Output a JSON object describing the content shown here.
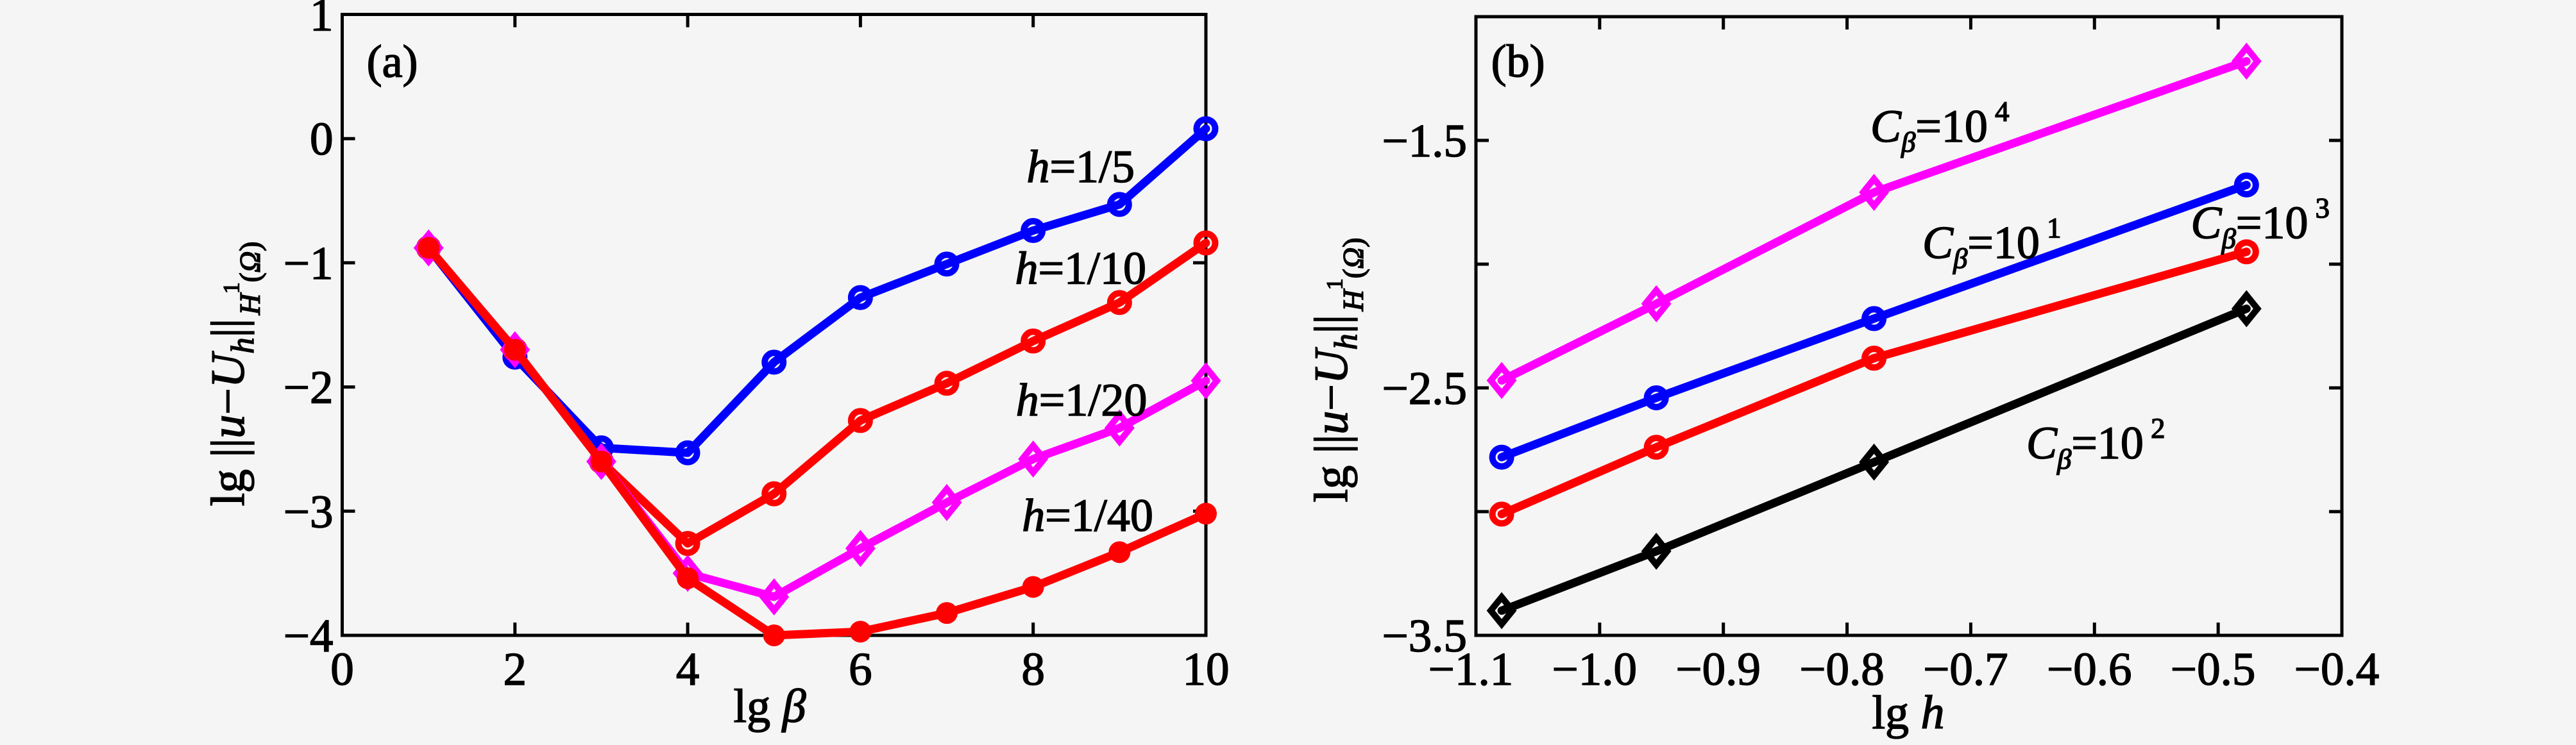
{
  "figure": {
    "background": "#F5F5F5",
    "frame_color": "#000000",
    "text_color": "#000000"
  },
  "chart_data": [
    {
      "type": "line",
      "panel_label": "(a)",
      "xlabel": "lg β",
      "xlabel_segments": [
        {
          "t": "lg "
        },
        {
          "t": "β",
          "i": 1
        }
      ],
      "ylabel": "lg ||u−U_h||_H1(Ω)",
      "ylabel_segments": [
        {
          "t": "lg "
        },
        {
          "t": "||"
        },
        {
          "t": "u",
          "i": 1
        },
        {
          "t": "−"
        },
        {
          "t": "U",
          "i": 1
        },
        {
          "t": "h",
          "i": 1,
          "sz": 0.68,
          "dy": 0.2
        },
        {
          "t": "||"
        },
        {
          "t": " ",
          "sz": 0.3
        },
        {
          "t": "H",
          "i": 1,
          "sz": 0.62,
          "dy": 0.34
        },
        {
          "t": "1",
          "sz": 0.48,
          "dy": -0.1
        },
        {
          "t": "(",
          "sz": 0.62,
          "dy": 0.34
        },
        {
          "t": "Ω",
          "i": 1,
          "sz": 0.62,
          "dy": 0.34
        },
        {
          "t": ")",
          "sz": 0.62,
          "dy": 0.34
        }
      ],
      "xlim": [
        0,
        10
      ],
      "ylim": [
        -4,
        1
      ],
      "xticks": [
        {
          "v": 0,
          "label": "0"
        },
        {
          "v": 2,
          "label": "2"
        },
        {
          "v": 4,
          "label": "4"
        },
        {
          "v": 6,
          "label": "6"
        },
        {
          "v": 8,
          "label": "8"
        },
        {
          "v": 10,
          "label": "10"
        }
      ],
      "yticks": [
        {
          "v": 1,
          "label": "1"
        },
        {
          "v": 0,
          "label": "0"
        },
        {
          "v": -1,
          "label": "−1"
        },
        {
          "v": -2,
          "label": "−2"
        },
        {
          "v": -3,
          "label": "−3"
        },
        {
          "v": -4,
          "label": "−4"
        }
      ],
      "series": [
        {
          "name": "h=1/5",
          "color": "#0000FF",
          "marker": "circle",
          "filled": false,
          "x": [
            1,
            2,
            3,
            4,
            5,
            6,
            7,
            8,
            9,
            10
          ],
          "y": [
            -0.88,
            -1.76,
            -2.49,
            -2.53,
            -1.8,
            -1.28,
            -1.01,
            -0.74,
            -0.53,
            0.08
          ],
          "label_segments": [
            {
              "t": "h",
              "i": 1
            },
            {
              "t": "=1/5"
            }
          ],
          "label_pos": {
            "x": 8.55,
            "y": -0.22
          }
        },
        {
          "name": "h=1/10",
          "color": "#FF0000",
          "marker": "circle",
          "filled": false,
          "x": [
            1,
            2,
            3,
            4,
            5,
            6,
            7,
            8,
            9,
            10
          ],
          "y": [
            -0.88,
            -1.7,
            -2.6,
            -3.26,
            -2.86,
            -2.27,
            -1.97,
            -1.63,
            -1.32,
            -0.84
          ],
          "label_segments": [
            {
              "t": "h",
              "i": 1
            },
            {
              "t": "=1/10"
            }
          ],
          "label_pos": {
            "x": 8.55,
            "y": -1.04
          }
        },
        {
          "name": "h=1/20",
          "color": "#FF00FF",
          "marker": "diamond",
          "filled": false,
          "x": [
            1,
            2,
            3,
            4,
            5,
            6,
            7,
            8,
            9,
            10
          ],
          "y": [
            -0.88,
            -1.7,
            -2.6,
            -3.5,
            -3.69,
            -3.3,
            -2.93,
            -2.58,
            -2.33,
            -1.95
          ],
          "label_segments": [
            {
              "t": "h",
              "i": 1
            },
            {
              "t": "=1/20"
            }
          ],
          "label_pos": {
            "x": 8.56,
            "y": -2.1
          }
        },
        {
          "name": "h=1/40",
          "color": "#FF0000",
          "marker": "circle",
          "filled": true,
          "x": [
            1,
            2,
            3,
            4,
            5,
            6,
            7,
            8,
            9,
            10
          ],
          "y": [
            -0.88,
            -1.7,
            -2.6,
            -3.54,
            -4.0,
            -3.97,
            -3.82,
            -3.61,
            -3.33,
            -3.02
          ],
          "label_segments": [
            {
              "t": "h",
              "i": 1
            },
            {
              "t": "=1/40"
            }
          ],
          "label_pos": {
            "x": 8.63,
            "y": -3.03
          }
        }
      ],
      "annotations": [
        {
          "name": "panel-label-a",
          "segments": [
            {
              "t": "(a)"
            }
          ],
          "x": 0.58,
          "y": 0.6,
          "size": 72
        }
      ]
    },
    {
      "type": "line",
      "panel_label": "(b)",
      "xlabel": "lg h",
      "xlabel_segments": [
        {
          "t": "lg "
        },
        {
          "t": "h",
          "i": 1
        }
      ],
      "ylabel": "lg ||u−U_h||_H1(Ω)",
      "ylabel_segments": [
        {
          "t": "lg "
        },
        {
          "t": "||"
        },
        {
          "t": "u",
          "i": 1
        },
        {
          "t": "−"
        },
        {
          "t": "U",
          "i": 1
        },
        {
          "t": "h",
          "i": 1,
          "sz": 0.68,
          "dy": 0.2
        },
        {
          "t": "||"
        },
        {
          "t": " ",
          "sz": 0.3
        },
        {
          "t": "H",
          "i": 1,
          "sz": 0.62,
          "dy": 0.34
        },
        {
          "t": "1",
          "sz": 0.48,
          "dy": -0.1
        },
        {
          "t": "(",
          "sz": 0.62,
          "dy": 0.34
        },
        {
          "t": "Ω",
          "i": 1,
          "sz": 0.62,
          "dy": 0.34
        },
        {
          "t": ")",
          "sz": 0.62,
          "dy": 0.34
        }
      ],
      "xlim": [
        -1.1,
        -0.4
      ],
      "ylim": [
        -3.5,
        -1.0
      ],
      "xticks": [
        {
          "v": -1.1,
          "label": "−1.1"
        },
        {
          "v": -1.0,
          "label": "−1.0"
        },
        {
          "v": -0.9,
          "label": "−0.9"
        },
        {
          "v": -0.8,
          "label": "−0.8"
        },
        {
          "v": -0.7,
          "label": "−0.7"
        },
        {
          "v": -0.6,
          "label": "−0.6"
        },
        {
          "v": -0.5,
          "label": "−0.5"
        },
        {
          "v": -0.4,
          "label": "−0.4"
        }
      ],
      "yticks": [
        {
          "v": -1.5,
          "label": "−1.5"
        },
        {
          "v": -2.0,
          "label": ""
        },
        {
          "v": -2.5,
          "label": "−2.5"
        },
        {
          "v": -3.0,
          "label": ""
        },
        {
          "v": -3.5,
          "label": "−3.5"
        }
      ],
      "series": [
        {
          "name": "C_β=10^4",
          "color": "#FF00FF",
          "marker": "diamond",
          "filled": false,
          "x": [
            -1.0792,
            -0.9542,
            -0.7782,
            -0.4771
          ],
          "y": [
            -2.47,
            -2.16,
            -1.71,
            -1.18
          ],
          "label_segments": [
            {
              "t": "C",
              "i": 1
            },
            {
              "t": "β",
              "i": 1,
              "sz": 0.62,
              "dy": 0.22
            },
            {
              "t": "=10"
            },
            {
              "t": " 4",
              "sz": 0.62,
              "dy": -0.45
            }
          ],
          "label_pos": {
            "x": -0.725,
            "y": -1.44
          }
        },
        {
          "name": "C_β=10^1",
          "color": "#0000FF",
          "marker": "circle",
          "filled": false,
          "x": [
            -1.0792,
            -0.9542,
            -0.7782,
            -0.4771
          ],
          "y": [
            -2.78,
            -2.54,
            -2.22,
            -1.68
          ],
          "label_segments": [
            {
              "t": "C",
              "i": 1
            },
            {
              "t": "β",
              "i": 1,
              "sz": 0.62,
              "dy": 0.22
            },
            {
              "t": "=10"
            },
            {
              "t": " 1",
              "sz": 0.62,
              "dy": -0.45
            }
          ],
          "label_pos": {
            "x": -0.683,
            "y": -1.91
          }
        },
        {
          "name": "C_β=10^3",
          "color": "#FF0000",
          "marker": "circle",
          "filled": false,
          "x": [
            -1.0792,
            -0.9542,
            -0.7782,
            -0.4771
          ],
          "y": [
            -3.01,
            -2.74,
            -2.38,
            -1.95
          ],
          "label_segments": [
            {
              "t": "C",
              "i": 1
            },
            {
              "t": "β",
              "i": 1,
              "sz": 0.62,
              "dy": 0.22
            },
            {
              "t": "=10"
            },
            {
              "t": " 3",
              "sz": 0.62,
              "dy": -0.45
            }
          ],
          "label_pos": {
            "x": -0.466,
            "y": -1.83
          }
        },
        {
          "name": "C_β=10^2",
          "color": "#000000",
          "marker": "diamond",
          "filled": false,
          "x": [
            -1.0792,
            -0.9542,
            -0.7782,
            -0.4771
          ],
          "y": [
            -3.4,
            -3.16,
            -2.8,
            -2.18
          ],
          "label_segments": [
            {
              "t": "C",
              "i": 1
            },
            {
              "t": "β",
              "i": 1,
              "sz": 0.62,
              "dy": 0.22
            },
            {
              "t": "=10"
            },
            {
              "t": " 2",
              "sz": 0.62,
              "dy": -0.45
            }
          ],
          "label_pos": {
            "x": -0.599,
            "y": -2.72
          }
        }
      ],
      "annotations": [
        {
          "name": "panel-label-b",
          "segments": [
            {
              "t": "(b)"
            }
          ],
          "x": -1.066,
          "y": -1.19,
          "size": 72
        }
      ]
    }
  ]
}
